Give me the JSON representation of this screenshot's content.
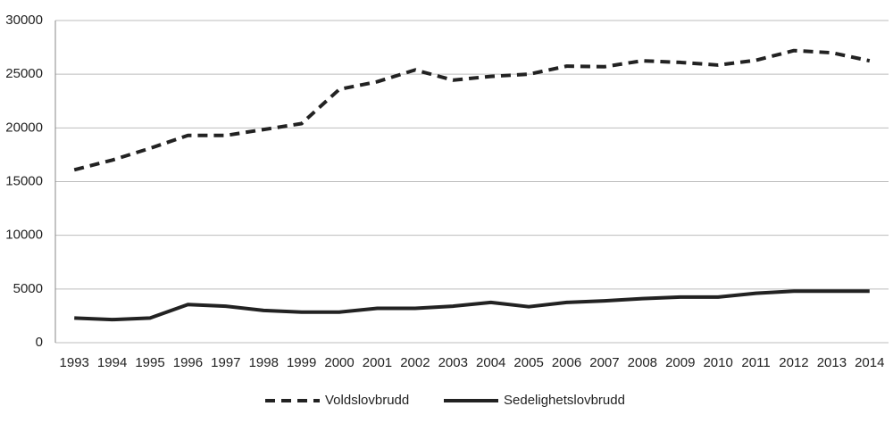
{
  "chart_data": {
    "type": "line",
    "categories": [
      "1993",
      "1994",
      "1995",
      "1996",
      "1997",
      "1998",
      "1999",
      "2000",
      "2001",
      "2002",
      "2003",
      "2004",
      "2005",
      "2006",
      "2007",
      "2008",
      "2009",
      "2010",
      "2011",
      "2012",
      "2013",
      "2014"
    ],
    "series": [
      {
        "name": "Voldslovbrudd",
        "color": "#222222",
        "dash": true,
        "values": [
          16100,
          17000,
          18100,
          19300,
          19300,
          19850,
          20400,
          23600,
          24300,
          25400,
          24450,
          24800,
          25000,
          25750,
          25700,
          26250,
          26100,
          25850,
          26300,
          27200,
          27000,
          26250
        ]
      },
      {
        "name": "Sedelighetslovbrudd",
        "color": "#222222",
        "dash": false,
        "values": [
          2300,
          2150,
          2300,
          3550,
          3400,
          3000,
          2850,
          2850,
          3200,
          3200,
          3400,
          3750,
          3350,
          3750,
          3900,
          4100,
          4250,
          4250,
          4600,
          4800,
          4800,
          4800
        ]
      }
    ],
    "ylim": [
      0,
      30000
    ],
    "yticks": [
      0,
      5000,
      10000,
      15000,
      20000,
      25000,
      30000
    ],
    "grid": true,
    "legend": "bottom"
  }
}
